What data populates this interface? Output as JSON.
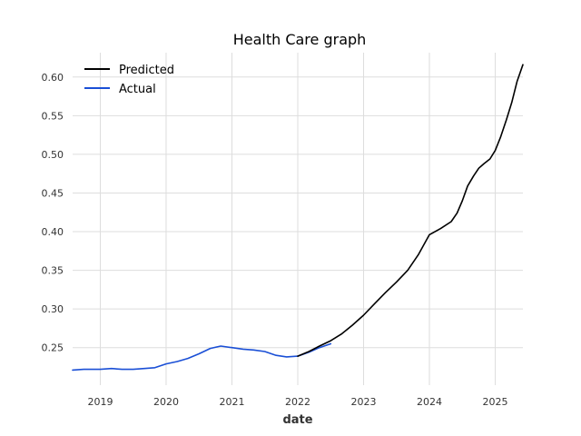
{
  "chart_data": {
    "type": "line",
    "title": "Health Care graph",
    "xlabel": "date",
    "ylabel": "",
    "xlim": [
      2018.58,
      2025.42
    ],
    "ylim": [
      0.2015,
      0.6315
    ],
    "x_ticks": [
      2019,
      2020,
      2021,
      2022,
      2023,
      2024,
      2025
    ],
    "y_ticks": [
      0.25,
      0.3,
      0.35,
      0.4,
      0.45,
      0.5,
      0.55,
      0.6
    ],
    "y_tick_labels": [
      "0.25",
      "0.30",
      "0.35",
      "0.40",
      "0.45",
      "0.50",
      "0.55",
      "0.60"
    ],
    "x_tick_labels": [
      "2019",
      "2020",
      "2021",
      "2022",
      "2023",
      "2024",
      "2025"
    ],
    "grid": true,
    "legend_position": "top-left",
    "series": [
      {
        "name": "Predicted",
        "color": "#000000",
        "x": [
          2022.0,
          2022.17,
          2022.33,
          2022.5,
          2022.67,
          2022.83,
          2023.0,
          2023.17,
          2023.33,
          2023.5,
          2023.67,
          2023.83,
          2024.0,
          2024.17,
          2024.33,
          2024.42,
          2024.5,
          2024.58,
          2024.67,
          2024.75,
          2024.83,
          2024.92,
          2025.0,
          2025.08,
          2025.17,
          2025.25,
          2025.33,
          2025.42
        ],
        "values": [
          0.239,
          0.245,
          0.252,
          0.259,
          0.268,
          0.279,
          0.292,
          0.307,
          0.321,
          0.335,
          0.35,
          0.37,
          0.396,
          0.404,
          0.413,
          0.424,
          0.44,
          0.459,
          0.472,
          0.482,
          0.488,
          0.494,
          0.505,
          0.522,
          0.545,
          0.567,
          0.594,
          0.616
        ]
      },
      {
        "name": "Actual",
        "color": "#1a4fd6",
        "x": [
          2018.58,
          2018.75,
          2019.0,
          2019.17,
          2019.33,
          2019.5,
          2019.67,
          2019.83,
          2020.0,
          2020.17,
          2020.33,
          2020.5,
          2020.67,
          2020.83,
          2021.0,
          2021.17,
          2021.33,
          2021.5,
          2021.67,
          2021.83,
          2022.0,
          2022.17,
          2022.33,
          2022.5
        ],
        "values": [
          0.221,
          0.222,
          0.222,
          0.223,
          0.222,
          0.222,
          0.223,
          0.224,
          0.229,
          0.232,
          0.236,
          0.242,
          0.249,
          0.252,
          0.25,
          0.248,
          0.247,
          0.245,
          0.24,
          0.238,
          0.239,
          0.244,
          0.25,
          0.255
        ]
      }
    ]
  }
}
